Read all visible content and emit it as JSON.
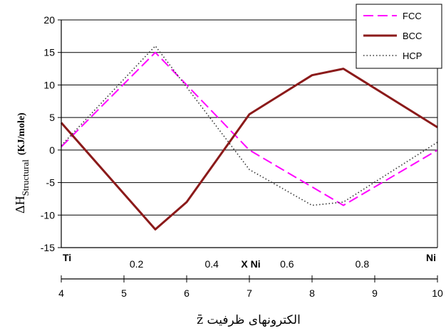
{
  "chart_data": {
    "type": "line",
    "x": [
      4,
      5.5,
      7,
      8.5,
      10
    ],
    "xlim": [
      4,
      10
    ],
    "ylim": [
      -15,
      20
    ],
    "y_ticks": [
      "-15",
      "-10",
      "-5",
      "0",
      "5",
      "10",
      "15",
      "20"
    ],
    "x_ticks_bottom": [
      "4",
      "5",
      "6",
      "7",
      "8",
      "9",
      "10"
    ],
    "x_ticks_top": [
      "0.2",
      "0.4",
      "0.6",
      "0.8"
    ],
    "x_top_left_label": "Ti",
    "x_top_right_label": "Ni",
    "x_top_middle_label": "X Ni",
    "ylabel_main": "ΔH",
    "ylabel_sub": "Structural",
    "ylabel_unit": "(KJ/mole)",
    "xlabel": "الکترونهای ظرفیت z̄",
    "grid": "horizontal",
    "legend_position": "top-right",
    "series": [
      {
        "name": "FCC",
        "color": "#ff00ff",
        "style": "dashed",
        "points": [
          [
            4,
            0.5
          ],
          [
            5.5,
            15
          ],
          [
            7,
            0
          ],
          [
            8.5,
            -8.5
          ],
          [
            10,
            0
          ]
        ]
      },
      {
        "name": "BCC",
        "color": "#8b1a1a",
        "style": "solid",
        "points": [
          [
            4,
            4.2
          ],
          [
            5.5,
            -12.2
          ],
          [
            6,
            -8
          ],
          [
            7,
            5.5
          ],
          [
            8,
            11.5
          ],
          [
            8.5,
            12.5
          ],
          [
            10,
            3.5
          ]
        ]
      },
      {
        "name": "HCP",
        "color": "#333333",
        "style": "dotted",
        "points": [
          [
            4,
            0.7
          ],
          [
            5.5,
            16
          ],
          [
            7,
            -3
          ],
          [
            8,
            -8.5
          ],
          [
            8.5,
            -8
          ],
          [
            10,
            1.2
          ]
        ]
      }
    ]
  }
}
